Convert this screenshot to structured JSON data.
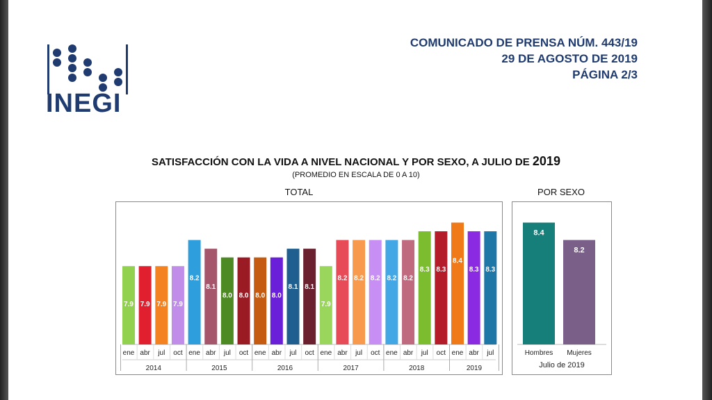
{
  "logo": {
    "name": "INEGI"
  },
  "header": {
    "line1": "COMUNICADO DE PRENSA NÚM. 443/19",
    "line2": "29 DE AGOSTO DE 2019",
    "line3": "PÁGINA 2/3"
  },
  "figure": {
    "title_pre": "SATISFACCIÓN CON LA VIDA A NIVEL NACIONAL Y POR SEXO, A JULIO DE ",
    "title_year": "2019",
    "subtitle": "(PROMEDIO EN ESCALA DE 0 A 10)",
    "total_label": "TOTAL",
    "sexo_label": "POR SEXO"
  },
  "chart_data": [
    {
      "type": "bar",
      "title": "TOTAL",
      "months": [
        "ene",
        "abr",
        "jul",
        "oct",
        "ene",
        "abr",
        "jul",
        "oct",
        "ene",
        "abr",
        "jul",
        "oct",
        "ene",
        "abr",
        "jul",
        "oct",
        "ene",
        "abr",
        "jul",
        "oct",
        "ene",
        "abr",
        "jul"
      ],
      "years": [
        "2014",
        "2015",
        "2016",
        "2017",
        "2018",
        "2019"
      ],
      "year_spans": [
        4,
        4,
        4,
        4,
        4,
        3
      ],
      "values": [
        7.9,
        7.9,
        7.9,
        7.9,
        8.2,
        8.1,
        8.0,
        8.0,
        8.0,
        8.0,
        8.1,
        8.1,
        7.9,
        8.2,
        8.2,
        8.2,
        8.2,
        8.2,
        8.3,
        8.3,
        8.4,
        8.3,
        8.3
      ],
      "labels": [
        "7.9",
        "7.9",
        "7.9",
        "7.9",
        "8.2",
        "8.1",
        "8.0",
        "8.0",
        "8.0",
        "8.0",
        "8.1",
        "8.1",
        "7.9",
        "8.2",
        "8.2",
        "8.2",
        "8.2",
        "8.2",
        "8.3",
        "8.3",
        "8.4",
        "8.3",
        "8.3"
      ],
      "colors": [
        "#92d050",
        "#e0202e",
        "#f58220",
        "#c08ee8",
        "#2e9fdc",
        "#a5566b",
        "#4e8a24",
        "#9b1b24",
        "#c55a11",
        "#6a20d8",
        "#1f5f8f",
        "#6b2030",
        "#9ad65c",
        "#e84b58",
        "#f79a4e",
        "#c78ef4",
        "#42a7e4",
        "#c06a80",
        "#7cbd2f",
        "#b51c2a",
        "#f07a18",
        "#8a2be2",
        "#1f77a8"
      ],
      "ylim": [
        7.0,
        8.5
      ]
    },
    {
      "type": "bar",
      "title": "POR SEXO",
      "categories": [
        "Hombres",
        "Mujeres"
      ],
      "values": [
        8.4,
        8.2
      ],
      "labels": [
        "8.4",
        "8.2"
      ],
      "colors": [
        "#177f7a",
        "#7a5f88"
      ],
      "period": "Julio de 2019",
      "ylim": [
        7.0,
        8.5
      ]
    }
  ]
}
